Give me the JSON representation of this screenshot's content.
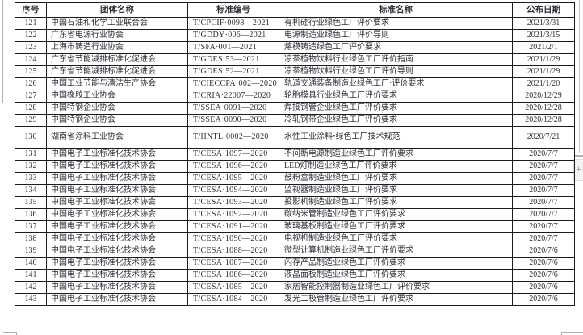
{
  "table": {
    "headers": {
      "no": "序号",
      "org": "团体名称",
      "code": "标准编号",
      "name": "标准名称",
      "date": "公布日期"
    },
    "rows": [
      {
        "no": "121",
        "org": "中国石油和化学工业联合会",
        "code": "T/CPCIF·0098—2021",
        "name": "有机硅行业绿色工厂评价要求",
        "date": "2021/3/31",
        "tall": false
      },
      {
        "no": "122",
        "org": "广东省电源行业协会",
        "code": "T/GDDY·006—2021",
        "name": "电源制造业绿色工厂评价导则",
        "date": "2021/3/15",
        "tall": false
      },
      {
        "no": "123",
        "org": "上海市铸造行业协会",
        "code": "T/SFA·001—2021",
        "name": "熔模铸造绿色工厂评价要求",
        "date": "2021/2/1",
        "tall": false
      },
      {
        "no": "124",
        "org": "广东省节能减排标准化促进会",
        "code": "T/GDES·53—2021",
        "name": "凉茶植物饮料行业绿色工厂评价指南",
        "date": "2021/1/29",
        "tall": false
      },
      {
        "no": "125",
        "org": "广东省节能减排标准化促进会",
        "code": "T/GDES·52—2021",
        "name": "凉茶植物饮料行业绿色工厂评价导则",
        "date": "2021/1/29",
        "tall": false
      },
      {
        "no": "126",
        "org": "中国工业节能与清洁生产协会",
        "code": "T/CIECCPA·002—2020",
        "name": "轨道交通装备制造业绿色工厂·评价要求",
        "date": "2021/1/20",
        "tall": false
      },
      {
        "no": "127",
        "org": "中国橡胶工业协会",
        "code": "T/CRIA·22007—2020",
        "name": "轮胎模具行业绿色工厂评价要求",
        "date": "2020/12/29",
        "tall": false
      },
      {
        "no": "128",
        "org": "中国特钢企业协会",
        "code": "T/SSEA·0091—2020",
        "name": "焊接钢管企业绿色工厂评价要求",
        "date": "2020/12/28",
        "tall": false
      },
      {
        "no": "129",
        "org": "中国特钢企业协会",
        "code": "T/SSEA·0090—2020",
        "name": "冷轧钢带企业绿色工厂评价要求",
        "date": "2020/12/28",
        "tall": false
      },
      {
        "no": "130",
        "org": "湖南省涂料工业协会",
        "code": "T/HNTL·0002—2020",
        "name": "水性工业涂料•绿色工厂技术规范",
        "date": "2020/7/21",
        "tall": true
      },
      {
        "no": "131",
        "org": "中国电子工业标准化技术协会",
        "code": "T/CESA·1097—2020",
        "name": "不间断电源制造业绿色工厂评价要求",
        "date": "2020/7/7",
        "tall": false
      },
      {
        "no": "132",
        "org": "中国电子工业标准化技术协会",
        "code": "T/CESA·1096—2020",
        "name": "LED灯制造业绿色工厂评价要求",
        "date": "2020/7/7",
        "tall": false
      },
      {
        "no": "133",
        "org": "中国电子工业标准化技术协会",
        "code": "T/CESA·1095—2020",
        "name": "鼓粉盒制造业绿色工厂评价要求",
        "date": "2020/7/7",
        "tall": false
      },
      {
        "no": "134",
        "org": "中国电子工业标准化技术协会",
        "code": "T/CESA·1094—2020",
        "name": "监视器制造业绿色工厂评价要求",
        "date": "2020/7/7",
        "tall": false
      },
      {
        "no": "135",
        "org": "中国电子工业标准化技术协会",
        "code": "T/CESA·1093—2020",
        "name": "投影机制造业绿色工厂评价要求",
        "date": "2020/7/7",
        "tall": false
      },
      {
        "no": "136",
        "org": "中国电子工业标准化技术协会",
        "code": "T/CESA·1092—2020",
        "name": "碳纳米管制造业绿色工厂评价要求",
        "date": "2020/7/7",
        "tall": false
      },
      {
        "no": "137",
        "org": "中国电子工业标准化技术协会",
        "code": "T/CESA·1091—2020",
        "name": "玻璃基板制造业绿色工厂评价要求",
        "date": "2020/7/7",
        "tall": false
      },
      {
        "no": "138",
        "org": "中国电子工业标准化技术协会",
        "code": "T/CESA·1090—2020",
        "name": "电视机制造业绿色工厂评价要求",
        "date": "2020/7/7",
        "tall": false
      },
      {
        "no": "139",
        "org": "中国电子工业标准化技术协会",
        "code": "T/CESA·1088—2020",
        "name": "微型计算机制造业绿色工厂评价要求",
        "date": "2020/7/6",
        "tall": false
      },
      {
        "no": "140",
        "org": "中国电子工业标准化技术协会",
        "code": "T/CESA·1087—2020",
        "name": "闪存产品制造业绿色工厂评价要求",
        "date": "2020/7/6",
        "tall": false
      },
      {
        "no": "141",
        "org": "中国电子工业标准化技术协会",
        "code": "T/CESA·1086—2020",
        "name": "液晶面板制造业绿色工厂评价要求",
        "date": "2020/7/6",
        "tall": false
      },
      {
        "no": "142",
        "org": "中国电子工业标准化技术协会",
        "code": "T/CESA·1085—2020",
        "name": "家居智能控制器制造业绿色工厂评价要求",
        "date": "2020/7/6",
        "tall": false
      },
      {
        "no": "143",
        "org": "中国电子工业标准化技术协会",
        "code": "T/CESA·1084—2020",
        "name": "发光二极管制造业绿色工厂评价要求",
        "date": "2020/7/6",
        "tall": false
      }
    ],
    "colors": {
      "border": "#1c1c1c",
      "text": "#2b2f38",
      "latin_text": "#2c3960"
    }
  },
  "artifacts": {
    "plus_handle_glyph": "+"
  }
}
